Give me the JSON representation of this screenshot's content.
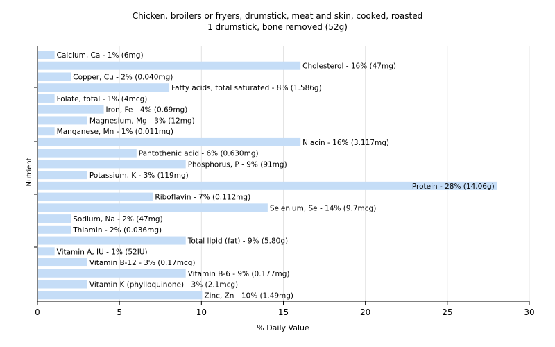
{
  "chart_data": {
    "type": "bar",
    "orientation": "horizontal",
    "title": "Chicken, broilers or fryers, drumstick, meat and skin, cooked, roasted",
    "subtitle": "1 drumstick, bone removed (52g)",
    "xlabel": "% Daily Value",
    "ylabel": "Nutrient",
    "xlim": [
      0,
      30
    ],
    "xticks": [
      "0",
      "5",
      "10",
      "15",
      "20",
      "25",
      "30"
    ],
    "grid": "vertical",
    "bar_color": "#c5ddf7",
    "grid_color": "#e4e4e4",
    "categories": [
      "Calcium, Ca",
      "Cholesterol",
      "Copper, Cu",
      "Fatty acids, total saturated",
      "Folate, total",
      "Iron, Fe",
      "Magnesium, Mg",
      "Manganese, Mn",
      "Niacin",
      "Pantothenic acid",
      "Phosphorus, P",
      "Potassium, K",
      "Protein",
      "Riboflavin",
      "Selenium, Se",
      "Sodium, Na",
      "Thiamin",
      "Total lipid (fat)",
      "Vitamin A, IU",
      "Vitamin B-12",
      "Vitamin B-6",
      "Vitamin K (phylloquinone)",
      "Zinc, Zn"
    ],
    "values": [
      1,
      16,
      2,
      8,
      1,
      4,
      3,
      1,
      16,
      6,
      9,
      3,
      28,
      7,
      14,
      2,
      2,
      9,
      1,
      3,
      9,
      3,
      10
    ],
    "labels": [
      "Calcium, Ca - 1% (6mg)",
      "Cholesterol - 16% (47mg)",
      "Copper, Cu - 2% (0.040mg)",
      "Fatty acids, total saturated - 8% (1.586g)",
      "Folate, total - 1% (4mcg)",
      "Iron, Fe - 4% (0.69mg)",
      "Magnesium, Mg - 3% (12mg)",
      "Manganese, Mn - 1% (0.011mg)",
      "Niacin - 16% (3.117mg)",
      "Pantothenic acid - 6% (0.630mg)",
      "Phosphorus, P - 9% (91mg)",
      "Potassium, K - 3% (119mg)",
      "Protein - 28% (14.06g)",
      "Riboflavin - 7% (0.112mg)",
      "Selenium, Se - 14% (9.7mcg)",
      "Sodium, Na - 2% (47mg)",
      "Thiamin - 2% (0.036mg)",
      "Total lipid (fat) - 9% (5.80g)",
      "Vitamin A, IU - 1% (52IU)",
      "Vitamin B-12 - 3% (0.17mcg)",
      "Vitamin B-6 - 9% (0.177mg)",
      "Vitamin K (phylloquinone) - 3% (2.1mcg)",
      "Zinc, Zn - 10% (1.49mg)"
    ]
  }
}
